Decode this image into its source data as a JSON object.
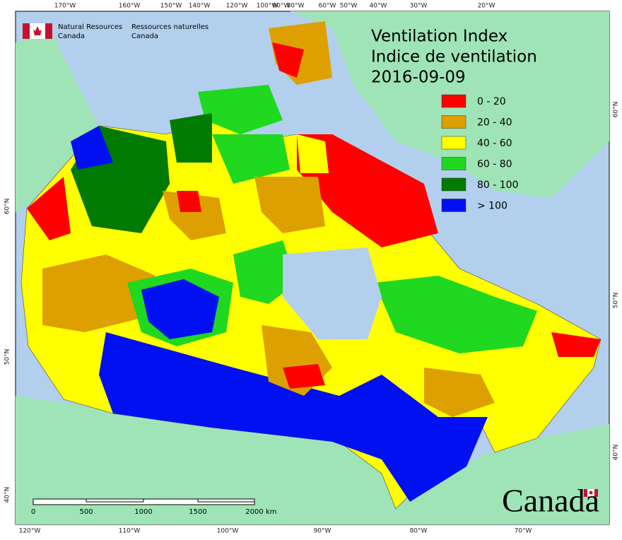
{
  "header": {
    "agency_en": [
      "Natural Resources",
      "Canada"
    ],
    "agency_fr": [
      "Ressources naturelles",
      "Canada"
    ]
  },
  "title": [
    "Ventilation Index",
    "Indice de ventilation"
  ],
  "date": "2016-09-09",
  "legend": [
    {
      "label": "0 - 20",
      "color": "#ff0000"
    },
    {
      "label": "20 - 40",
      "color": "#dda000"
    },
    {
      "label": "40 - 60",
      "color": "#ffff00"
    },
    {
      "label": "60 - 80",
      "color": "#1fd81f"
    },
    {
      "label": "80 - 100",
      "color": "#007a00"
    },
    {
      "label": "> 100",
      "color": "#0010f0"
    }
  ],
  "graticule": {
    "top": [
      "170°W",
      "160°W",
      "150°W",
      "140°W",
      "120°W",
      "100°W",
      "90°W",
      "80°W",
      "60°W",
      "50°W",
      "40°W",
      "30°W",
      "20°W"
    ],
    "bottom": [
      "120°W",
      "110°W",
      "100°W",
      "90°W",
      "80°W",
      "70°W"
    ],
    "left": [
      "60°N",
      "50°N",
      "40°N"
    ],
    "right": [
      "60°N",
      "50°N",
      "40°N"
    ]
  },
  "scale_bar": {
    "labels": [
      "0",
      "500",
      "1000",
      "1500",
      "2000"
    ],
    "unit": "km"
  },
  "wordmark": "Canada"
}
